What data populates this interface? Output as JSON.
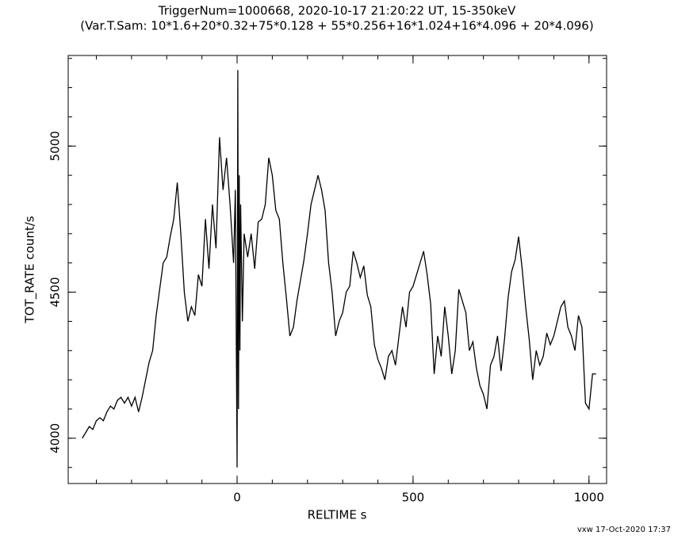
{
  "chart_data": {
    "type": "line",
    "title": "TriggerNum=1000668, 2020-10-17 21:20:22 UT, 15-350keV",
    "subtitle": "(Var.T.Sam: 10*1.6+20*0.32+75*0.128  +  55*0.256+16*1.024+16*4.096  +  20*4.096)",
    "x_label": "RELTIME  s",
    "y_label": "TOT_RATE  count/s",
    "footer": "vxw 17-Oct-2020 17:37",
    "color": "#000000",
    "xlim": [
      -480,
      1050
    ],
    "ylim": [
      3845,
      5310
    ],
    "xticks": [
      0,
      500,
      1000
    ],
    "yticks": [
      4000,
      4500,
      5000
    ],
    "xminorticks": [
      -400,
      -300,
      -200,
      -100,
      0,
      100,
      200,
      300,
      400,
      500,
      600,
      700,
      800,
      900,
      1000
    ],
    "yminorticks": [
      3900,
      4000,
      4100,
      4200,
      4300,
      4400,
      4500,
      4600,
      4700,
      4800,
      4900,
      5000,
      5100,
      5200,
      5300
    ],
    "x": [
      -440,
      -430,
      -420,
      -410,
      -400,
      -390,
      -380,
      -370,
      -360,
      -350,
      -340,
      -330,
      -320,
      -310,
      -300,
      -290,
      -280,
      -270,
      -260,
      -250,
      -240,
      -230,
      -220,
      -210,
      -200,
      -190,
      -180,
      -170,
      -160,
      -150,
      -140,
      -130,
      -120,
      -110,
      -100,
      -90,
      -80,
      -70,
      -60,
      -50,
      -40,
      -30,
      -20,
      -10,
      -5,
      0,
      2,
      4,
      6,
      8,
      10,
      15,
      20,
      30,
      40,
      50,
      60,
      70,
      80,
      90,
      100,
      110,
      120,
      130,
      140,
      150,
      160,
      170,
      180,
      190,
      200,
      210,
      220,
      230,
      240,
      250,
      260,
      270,
      280,
      290,
      300,
      310,
      320,
      330,
      340,
      350,
      360,
      370,
      380,
      390,
      400,
      410,
      420,
      430,
      440,
      450,
      460,
      470,
      480,
      490,
      500,
      510,
      520,
      530,
      540,
      550,
      560,
      570,
      580,
      590,
      600,
      610,
      620,
      630,
      640,
      650,
      660,
      670,
      680,
      690,
      700,
      710,
      720,
      730,
      740,
      750,
      760,
      770,
      780,
      790,
      800,
      810,
      820,
      830,
      840,
      850,
      860,
      870,
      880,
      890,
      900,
      910,
      920,
      930,
      940,
      950,
      960,
      970,
      980,
      990,
      1000,
      1010,
      1020
    ],
    "values": [
      4000,
      4020,
      4040,
      4030,
      4060,
      4070,
      4060,
      4090,
      4110,
      4100,
      4130,
      4140,
      4120,
      4140,
      4110,
      4140,
      4090,
      4140,
      4200,
      4260,
      4300,
      4420,
      4510,
      4600,
      4620,
      4690,
      4750,
      4875,
      4700,
      4500,
      4400,
      4450,
      4420,
      4560,
      4520,
      4750,
      4580,
      4800,
      4650,
      5030,
      4850,
      4960,
      4800,
      4600,
      4850,
      3900,
      5260,
      4100,
      4900,
      4300,
      4800,
      4400,
      4700,
      4620,
      4700,
      4580,
      4740,
      4750,
      4800,
      4960,
      4900,
      4780,
      4750,
      4600,
      4480,
      4350,
      4380,
      4470,
      4540,
      4610,
      4700,
      4800,
      4850,
      4900,
      4850,
      4780,
      4600,
      4500,
      4350,
      4400,
      4430,
      4500,
      4520,
      4640,
      4600,
      4550,
      4590,
      4490,
      4450,
      4320,
      4270,
      4240,
      4200,
      4280,
      4300,
      4250,
      4350,
      4450,
      4380,
      4500,
      4520,
      4560,
      4600,
      4640,
      4560,
      4460,
      4220,
      4350,
      4280,
      4450,
      4350,
      4220,
      4300,
      4510,
      4470,
      4430,
      4300,
      4330,
      4240,
      4180,
      4150,
      4100,
      4250,
      4280,
      4350,
      4230,
      4340,
      4480,
      4570,
      4610,
      4690,
      4580,
      4450,
      4340,
      4200,
      4300,
      4250,
      4280,
      4360,
      4320,
      4350,
      4400,
      4450,
      4470,
      4380,
      4350,
      4300,
      4420,
      4380,
      4120,
      4100,
      4220,
      4220
    ]
  }
}
